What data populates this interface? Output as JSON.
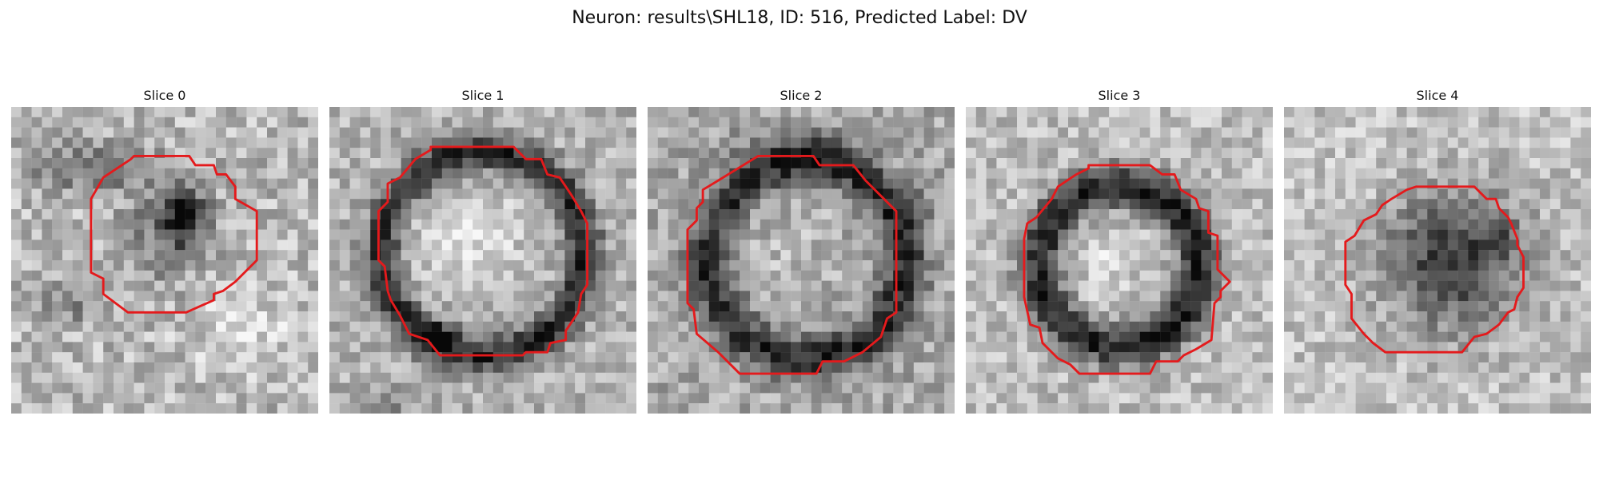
{
  "figure": {
    "title": "Neuron: results\\SHL18, ID: 516, Predicted Label: DV",
    "contour_color": "#e41a1c"
  },
  "slices": [
    {
      "title": "Slice 0"
    },
    {
      "title": "Slice 1"
    },
    {
      "title": "Slice 2"
    },
    {
      "title": "Slice 3"
    },
    {
      "title": "Slice 4"
    }
  ]
}
